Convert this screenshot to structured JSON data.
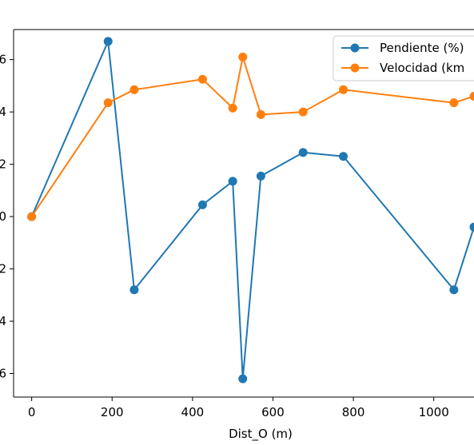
{
  "chart_data": {
    "type": "line",
    "title": "",
    "xlabel": "Dist_O (m)",
    "ylabel": "",
    "xlim": [
      -45,
      1100
    ],
    "ylim": [
      -6.9,
      7.15
    ],
    "x_ticks": [
      0,
      200,
      400,
      600,
      800,
      1000
    ],
    "x_tick_labels": [
      "0",
      "200",
      "400",
      "600",
      "800",
      "1000"
    ],
    "y_ticks": [
      -6,
      -4,
      -2,
      0,
      2,
      4,
      6
    ],
    "y_tick_labels_visible": [
      "6",
      "4",
      "2",
      "0",
      "2",
      "4",
      "6"
    ],
    "legend_position": "top-right",
    "marker": "circle",
    "series": [
      {
        "name": "Pendiente (%)",
        "color": "#1f77b4",
        "x": [
          0,
          190,
          255,
          425,
          500,
          525,
          570,
          675,
          775,
          1050,
          1100
        ],
        "y": [
          0.0,
          6.7,
          -2.8,
          0.45,
          1.35,
          -6.2,
          1.55,
          2.45,
          2.3,
          -2.8,
          -0.4
        ]
      },
      {
        "name": "Velocidad (km",
        "color": "#ff7f0e",
        "x": [
          0,
          190,
          255,
          425,
          500,
          525,
          570,
          675,
          775,
          1050,
          1100
        ],
        "y": [
          0.0,
          4.35,
          4.85,
          5.25,
          4.15,
          6.1,
          3.9,
          4.0,
          4.85,
          4.35,
          4.6
        ]
      }
    ]
  }
}
